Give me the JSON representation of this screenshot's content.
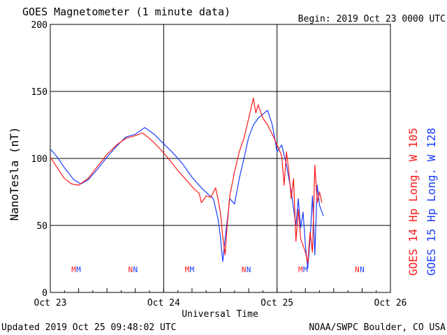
{
  "header": {
    "title": "GOES Magnetometer (1 minute data)",
    "begin": "Begin:  2019 Oct 23 0000 UTC"
  },
  "footer": {
    "updated": "Updated 2019 Oct 25 09:48:02 UTC",
    "source": "NOAA/SWPC Boulder, CO USA"
  },
  "colors": {
    "goes14": "#ff1a1a",
    "goes15": "#1a3cff",
    "grid": "#000000"
  },
  "chart_data": {
    "type": "line",
    "xlabel": "Universal Time",
    "ylabel": "NanoTesla (nT)",
    "ylim": [
      0,
      200
    ],
    "yticks": [
      0,
      50,
      100,
      150,
      200
    ],
    "xlim": [
      "2019-10-23 00:00",
      "2019-10-26 00:00"
    ],
    "xticks": [
      {
        "t": "2019-10-23 00:00",
        "label": "Oct 23"
      },
      {
        "t": "2019-10-24 00:00",
        "label": "Oct 24"
      },
      {
        "t": "2019-10-25 00:00",
        "label": "Oct 25"
      },
      {
        "t": "2019-10-26 00:00",
        "label": "Oct 26"
      }
    ],
    "grid": true,
    "markers": [
      {
        "t": "2019-10-23 06:00",
        "label": "M"
      },
      {
        "t": "2019-10-23 18:00",
        "label": "N"
      },
      {
        "t": "2019-10-24 06:00",
        "label": "M"
      },
      {
        "t": "2019-10-24 18:00",
        "label": "N"
      },
      {
        "t": "2019-10-25 06:00",
        "label": "M"
      },
      {
        "t": "2019-10-25 18:00",
        "label": "N"
      }
    ],
    "series": [
      {
        "name": "GOES 14 Hp  Long. W 105",
        "color": "#ff1a1a",
        "points": [
          [
            "2019-10-23 00:00",
            101
          ],
          [
            "2019-10-23 01:30",
            93
          ],
          [
            "2019-10-23 03:00",
            85
          ],
          [
            "2019-10-23 04:30",
            81
          ],
          [
            "2019-10-23 06:00",
            80
          ],
          [
            "2019-10-23 08:00",
            85
          ],
          [
            "2019-10-23 10:00",
            94
          ],
          [
            "2019-10-23 12:00",
            103
          ],
          [
            "2019-10-23 14:00",
            110
          ],
          [
            "2019-10-23 16:00",
            115
          ],
          [
            "2019-10-23 18:00",
            117
          ],
          [
            "2019-10-23 19:30",
            119
          ],
          [
            "2019-10-23 21:00",
            115
          ],
          [
            "2019-10-23 23:00",
            108
          ],
          [
            "2019-10-24 01:00",
            100
          ],
          [
            "2019-10-24 03:00",
            91
          ],
          [
            "2019-10-24 05:00",
            83
          ],
          [
            "2019-10-24 06:30",
            77
          ],
          [
            "2019-10-24 07:30",
            74
          ],
          [
            "2019-10-24 08:00",
            67
          ],
          [
            "2019-10-24 09:00",
            72
          ],
          [
            "2019-10-24 10:00",
            71
          ],
          [
            "2019-10-24 11:00",
            78
          ],
          [
            "2019-10-24 11:30",
            70
          ],
          [
            "2019-10-24 12:00",
            60
          ],
          [
            "2019-10-24 12:30",
            42
          ],
          [
            "2019-10-24 13:00",
            28
          ],
          [
            "2019-10-24 13:30",
            52
          ],
          [
            "2019-10-24 14:00",
            72
          ],
          [
            "2019-10-24 15:00",
            90
          ],
          [
            "2019-10-24 16:00",
            105
          ],
          [
            "2019-10-24 17:00",
            115
          ],
          [
            "2019-10-24 18:00",
            130
          ],
          [
            "2019-10-24 19:00",
            145
          ],
          [
            "2019-10-24 19:30",
            134
          ],
          [
            "2019-10-24 20:00",
            140
          ],
          [
            "2019-10-24 21:00",
            130
          ],
          [
            "2019-10-24 22:00",
            125
          ],
          [
            "2019-10-24 23:00",
            118
          ],
          [
            "2019-10-25 00:00",
            110
          ],
          [
            "2019-10-25 01:00",
            102
          ],
          [
            "2019-10-25 01:30",
            80
          ],
          [
            "2019-10-25 02:00",
            105
          ],
          [
            "2019-10-25 02:30",
            90
          ],
          [
            "2019-10-25 03:00",
            70
          ],
          [
            "2019-10-25 03:30",
            85
          ],
          [
            "2019-10-25 04:00",
            38
          ],
          [
            "2019-10-25 04:30",
            62
          ],
          [
            "2019-10-25 05:00",
            40
          ],
          [
            "2019-10-25 06:00",
            30
          ],
          [
            "2019-10-25 06:30",
            22
          ],
          [
            "2019-10-25 07:00",
            45
          ],
          [
            "2019-10-25 07:30",
            30
          ],
          [
            "2019-10-25 08:00",
            95
          ],
          [
            "2019-10-25 08:30",
            67
          ],
          [
            "2019-10-25 09:00",
            75
          ],
          [
            "2019-10-25 09:30",
            67
          ]
        ]
      },
      {
        "name": "GOES 15 Hp  Long. W 128",
        "color": "#1a3cff",
        "points": [
          [
            "2019-10-23 00:00",
            107
          ],
          [
            "2019-10-23 01:30",
            101
          ],
          [
            "2019-10-23 03:00",
            93
          ],
          [
            "2019-10-23 05:00",
            84
          ],
          [
            "2019-10-23 06:30",
            81
          ],
          [
            "2019-10-23 08:00",
            84
          ],
          [
            "2019-10-23 10:00",
            92
          ],
          [
            "2019-10-23 12:00",
            101
          ],
          [
            "2019-10-23 14:00",
            109
          ],
          [
            "2019-10-23 16:00",
            116
          ],
          [
            "2019-10-23 18:00",
            118
          ],
          [
            "2019-10-23 20:00",
            123
          ],
          [
            "2019-10-23 22:00",
            118
          ],
          [
            "2019-10-24 00:00",
            111
          ],
          [
            "2019-10-24 02:00",
            104
          ],
          [
            "2019-10-24 04:00",
            96
          ],
          [
            "2019-10-24 06:00",
            86
          ],
          [
            "2019-10-24 08:00",
            78
          ],
          [
            "2019-10-24 09:30",
            73
          ],
          [
            "2019-10-24 10:30",
            70
          ],
          [
            "2019-10-24 11:30",
            55
          ],
          [
            "2019-10-24 12:00",
            42
          ],
          [
            "2019-10-24 12:30",
            23
          ],
          [
            "2019-10-24 13:00",
            40
          ],
          [
            "2019-10-24 14:00",
            70
          ],
          [
            "2019-10-24 15:00",
            66
          ],
          [
            "2019-10-24 16:00",
            85
          ],
          [
            "2019-10-24 17:00",
            100
          ],
          [
            "2019-10-24 18:00",
            116
          ],
          [
            "2019-10-24 19:00",
            125
          ],
          [
            "2019-10-24 20:00",
            130
          ],
          [
            "2019-10-24 21:00",
            133
          ],
          [
            "2019-10-24 22:00",
            136
          ],
          [
            "2019-10-24 23:00",
            125
          ],
          [
            "2019-10-25 00:00",
            105
          ],
          [
            "2019-10-25 01:00",
            110
          ],
          [
            "2019-10-25 02:00",
            95
          ],
          [
            "2019-10-25 03:00",
            75
          ],
          [
            "2019-10-25 04:00",
            50
          ],
          [
            "2019-10-25 04:30",
            70
          ],
          [
            "2019-10-25 05:00",
            48
          ],
          [
            "2019-10-25 05:30",
            60
          ],
          [
            "2019-10-25 06:00",
            35
          ],
          [
            "2019-10-25 06:30",
            18
          ],
          [
            "2019-10-25 07:00",
            40
          ],
          [
            "2019-10-25 07:30",
            72
          ],
          [
            "2019-10-25 08:00",
            28
          ],
          [
            "2019-10-25 08:30",
            80
          ],
          [
            "2019-10-25 09:00",
            65
          ],
          [
            "2019-10-25 09:48",
            57
          ]
        ]
      }
    ]
  }
}
